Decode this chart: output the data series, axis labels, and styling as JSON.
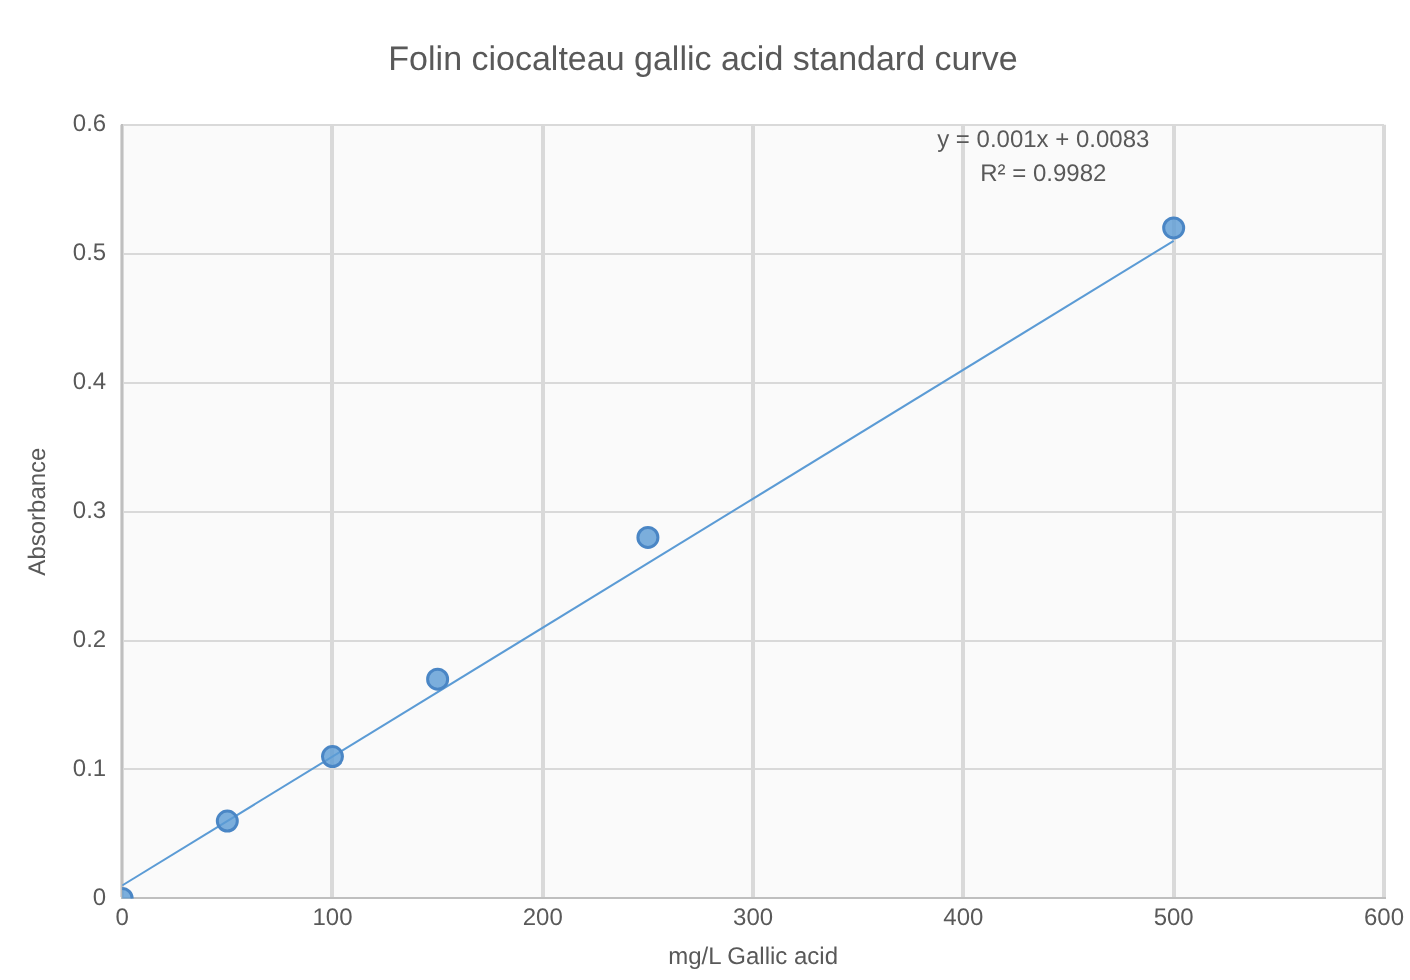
{
  "chart_data": {
    "type": "scatter",
    "title": "Folin ciocalteau gallic acid standard curve",
    "xlabel": "mg/L Gallic acid",
    "ylabel": "Absorbance",
    "x": [
      0,
      50,
      100,
      150,
      250,
      500
    ],
    "series": [
      {
        "color": "#5b9bd5",
        "values": [
          0,
          0.06,
          0.11,
          0.17,
          0.28,
          0.52
        ],
        "marker": "circle"
      },
      {
        "type": "line",
        "color": "#5b9bd5",
        "x": [
          0,
          500
        ],
        "values": [
          0.01,
          0.51
        ],
        "marker": "none",
        "line_style": "solid"
      }
    ],
    "xlim": [
      0,
      600
    ],
    "xticks": [
      0,
      100,
      200,
      300,
      400,
      500,
      600
    ],
    "ylim": [
      0,
      0.6
    ],
    "yticks": [
      0,
      0.1,
      0.2,
      0.3,
      0.4,
      0.5,
      0.6
    ],
    "grid": true,
    "legend": false,
    "annotations": [
      "y = 0.001x + 0.0083",
      "R² = 0.9982"
    ]
  }
}
